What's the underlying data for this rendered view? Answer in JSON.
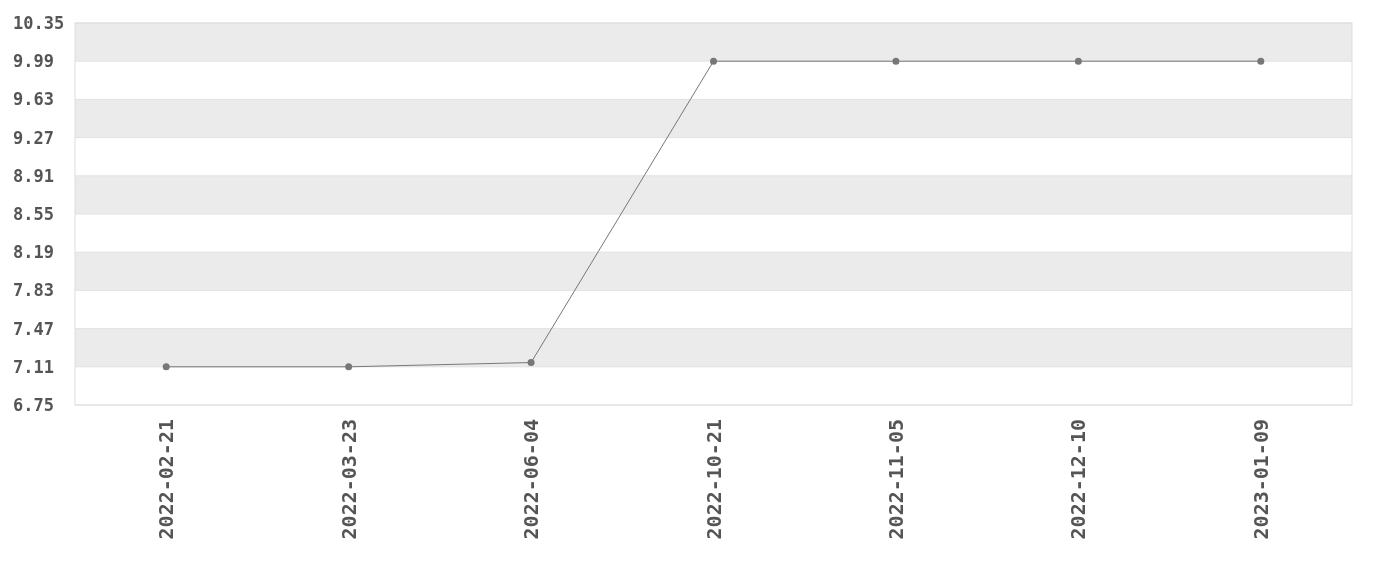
{
  "chart_data": {
    "type": "line",
    "categories": [
      "2022-02-21",
      "2022-03-23",
      "2022-06-04",
      "2022-10-21",
      "2022-11-05",
      "2022-12-10",
      "2023-01-09"
    ],
    "series": [
      {
        "color": "#777777",
        "values": [
          7.11,
          7.11,
          7.15,
          9.99,
          9.99,
          9.99,
          9.99
        ]
      }
    ],
    "ylim": [
      6.75,
      10.35
    ],
    "yticks": [
      6.75,
      7.11,
      7.47,
      7.83,
      8.19,
      8.55,
      8.91,
      9.27,
      9.63,
      9.99,
      10.35
    ],
    "grid": "y",
    "marker": "circle",
    "line_style": "solid"
  }
}
